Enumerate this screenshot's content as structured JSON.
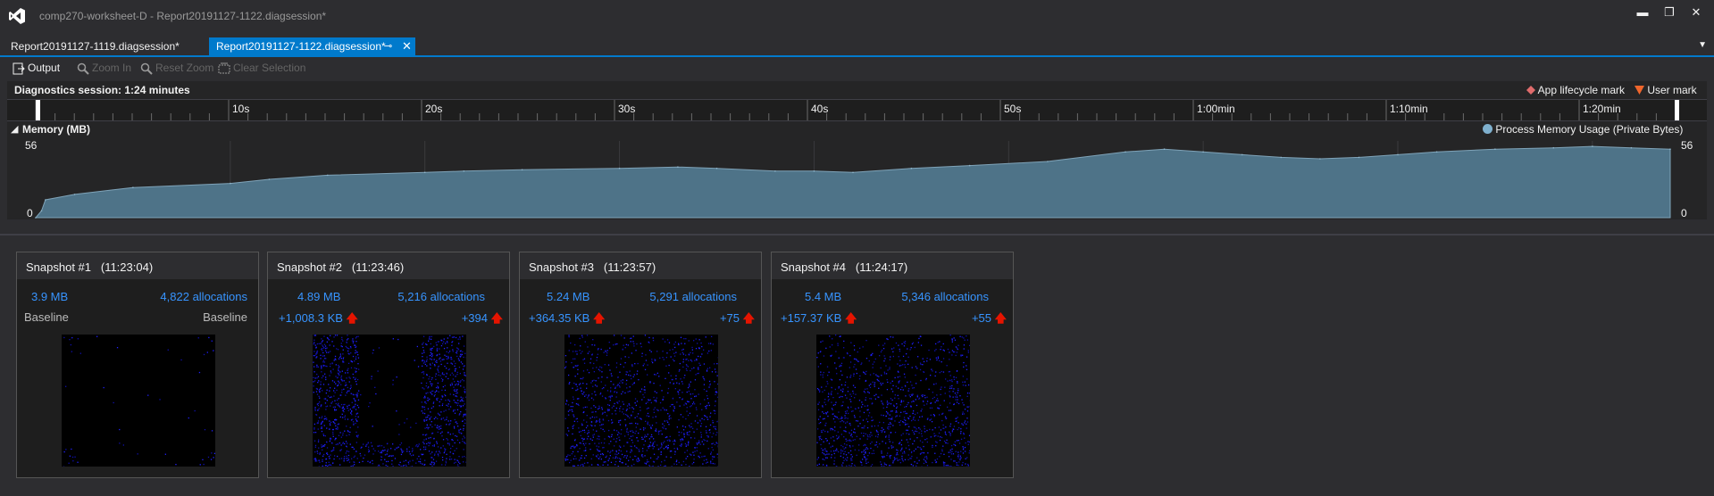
{
  "window": {
    "title": "comp270-worksheet-D - Report20191127-1122.diagsession*",
    "minimize": "▬",
    "restore": "❐",
    "close": "✕"
  },
  "tabs": [
    {
      "label": "Report20191127-1119.diagsession*",
      "active": false
    },
    {
      "label": "Report20191127-1122.diagsession*",
      "active": true
    }
  ],
  "toolbar": {
    "output": "Output",
    "zoom_in": "Zoom In",
    "reset_zoom": "Reset Zoom",
    "clear_selection": "Clear Selection"
  },
  "session": {
    "label": "Diagnostics session: 1:24 minutes",
    "legend_lifecycle": "App lifecycle mark",
    "legend_user": "User mark"
  },
  "ruler": {
    "ticks": [
      "10s",
      "20s",
      "30s",
      "40s",
      "50s",
      "1:00min",
      "1:10min",
      "1:20min"
    ]
  },
  "memory": {
    "header": "Memory (MB)",
    "legend": "Process Memory Usage (Private Bytes)",
    "ymax_label": "56",
    "ymin_label": "0"
  },
  "chart_data": {
    "type": "area",
    "title": "Memory (MB)",
    "xlabel": "",
    "ylabel": "",
    "ylim": [
      0,
      56
    ],
    "x": [
      0,
      0.3,
      0.5,
      2,
      5,
      10,
      12,
      15,
      20,
      22,
      25,
      30,
      33,
      35,
      38,
      40,
      42,
      45,
      48,
      52,
      56,
      58,
      60,
      62,
      64,
      66,
      68,
      70,
      72,
      75,
      78,
      80,
      82,
      84
    ],
    "series": [
      {
        "name": "Process Memory Usage (Private Bytes)",
        "values": [
          0,
          5,
          13,
          17,
          22,
          25,
          28,
          31,
          33,
          34,
          35,
          36,
          37,
          36,
          34,
          34,
          33,
          36,
          38,
          41,
          48,
          50,
          48,
          46,
          44,
          43,
          44,
          46,
          48,
          50,
          51,
          52,
          51,
          50
        ]
      }
    ]
  },
  "snapshots": [
    {
      "title": "Snapshot #1",
      "time": "(11:23:04)",
      "size": "3.9 MB",
      "allocations": "4,822 allocations",
      "size_diff": "Baseline",
      "alloc_diff": "Baseline",
      "baseline": true
    },
    {
      "title": "Snapshot #2",
      "time": "(11:23:46)",
      "size": "4.89 MB",
      "allocations": "5,216 allocations",
      "size_diff": "+1,008.3 KB",
      "alloc_diff": "+394",
      "baseline": false
    },
    {
      "title": "Snapshot #3",
      "time": "(11:23:57)",
      "size": "5.24 MB",
      "allocations": "5,291 allocations",
      "size_diff": "+364.35 KB",
      "alloc_diff": "+75",
      "baseline": false
    },
    {
      "title": "Snapshot #4",
      "time": "(11:24:17)",
      "size": "5.4 MB",
      "allocations": "5,346 allocations",
      "size_diff": "+157.37 KB",
      "alloc_diff": "+55",
      "baseline": false
    }
  ],
  "colors": {
    "accent": "#007acc",
    "area_fill": "#4e7388",
    "link_blue": "#3794ff",
    "increase_arrow": "#e51400",
    "lifecycle_mark": "#e06c6c",
    "user_mark": "#f0662c"
  }
}
